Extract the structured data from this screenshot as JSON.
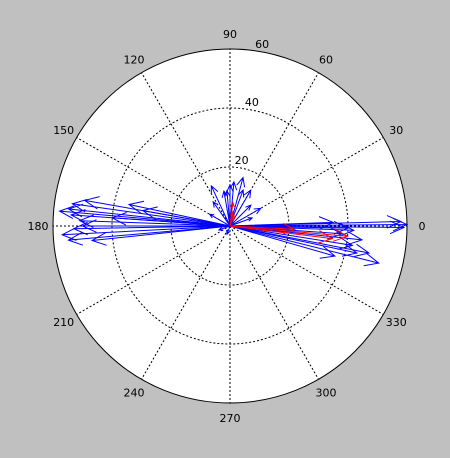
{
  "chart_data": {
    "type": "compass",
    "title": "",
    "rmax": 60,
    "ring_values": [
      20,
      40,
      60
    ],
    "ring_labels": [
      "20",
      "40",
      "60"
    ],
    "angle_ticks": [
      0,
      30,
      60,
      90,
      120,
      150,
      180,
      210,
      240,
      270,
      300,
      330
    ],
    "angle_labels": [
      "0",
      "30",
      "60",
      "90",
      "120",
      "150",
      "180",
      "210",
      "240",
      "270",
      "300",
      "330"
    ],
    "grid": true,
    "colors": {
      "background": "#c0c0c0",
      "plot": "#ffffff",
      "grid": "#000000",
      "blue": "#0000ff",
      "red": "#ff0000"
    },
    "series": [
      {
        "color": "blue",
        "vectors": [
          {
            "angle": 0.5,
            "r": 60
          },
          {
            "angle": 1.5,
            "r": 58
          },
          {
            "angle": -0.5,
            "r": 59
          },
          {
            "angle": 2,
            "r": 35
          },
          {
            "angle": -1,
            "r": 40
          },
          {
            "angle": -2,
            "r": 42
          },
          {
            "angle": -4,
            "r": 38
          },
          {
            "angle": -6,
            "r": 45
          },
          {
            "angle": -9,
            "r": 42
          },
          {
            "angle": -12,
            "r": 44
          },
          {
            "angle": -14,
            "r": 52
          },
          {
            "angle": -11,
            "r": 48
          },
          {
            "angle": -16,
            "r": 37
          },
          {
            "angle": 170,
            "r": 50
          },
          {
            "angle": 172,
            "r": 54
          },
          {
            "angle": 174,
            "r": 55
          },
          {
            "angle": 176,
            "r": 54
          },
          {
            "angle": 175,
            "r": 58
          },
          {
            "angle": 178,
            "r": 51
          },
          {
            "angle": 180,
            "r": 50
          },
          {
            "angle": 181,
            "r": 53
          },
          {
            "angle": 183,
            "r": 57
          },
          {
            "angle": 185,
            "r": 55
          },
          {
            "angle": 186,
            "r": 47
          },
          {
            "angle": 168,
            "r": 35
          },
          {
            "angle": 170,
            "r": 30
          },
          {
            "angle": 176,
            "r": 40
          },
          {
            "angle": 60,
            "r": 14
          },
          {
            "angle": 70,
            "r": 13
          },
          {
            "angle": 75,
            "r": 17
          },
          {
            "angle": 85,
            "r": 15
          },
          {
            "angle": 90,
            "r": 14
          },
          {
            "angle": 95,
            "r": 12
          },
          {
            "angle": 100,
            "r": 12
          },
          {
            "angle": 115,
            "r": 15
          },
          {
            "angle": 125,
            "r": 10
          },
          {
            "angle": 150,
            "r": 8
          },
          {
            "angle": 45,
            "r": 10
          },
          {
            "angle": 30,
            "r": 12
          },
          {
            "angle": 20,
            "r": 8
          },
          {
            "angle": 200,
            "r": 4
          },
          {
            "angle": 250,
            "r": 3
          }
        ]
      },
      {
        "color": "red",
        "vectors": [
          {
            "angle": -5,
            "r": 40
          },
          {
            "angle": -7,
            "r": 35
          },
          {
            "angle": -3,
            "r": 22
          },
          {
            "angle": 83,
            "r": 8
          },
          {
            "angle": 78,
            "r": 5
          },
          {
            "angle": 70,
            "r": 4
          }
        ]
      }
    ]
  }
}
